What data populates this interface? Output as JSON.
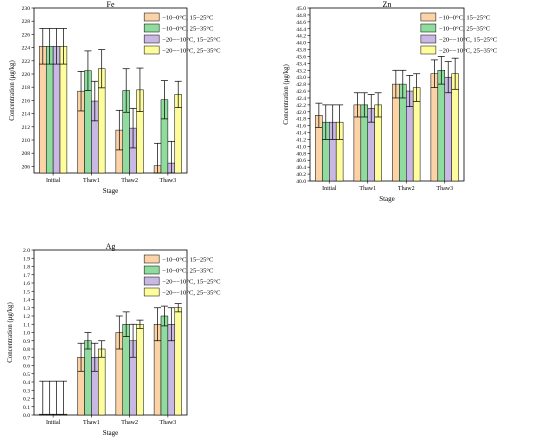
{
  "colors": {
    "series": [
      "#fcd3a6",
      "#8fdc9e",
      "#c9b8e4",
      "#fdfd9c"
    ]
  },
  "chart_data": [
    {
      "type": "bar",
      "title": "Fe",
      "xlabel": "Stage",
      "ylabel": "Concentration (μg/kg)",
      "categories": [
        "Initial",
        "Thaw1",
        "Thaw2",
        "Thaw3"
      ],
      "ylim": [
        205,
        230
      ],
      "yticks": [
        206,
        208,
        210,
        212,
        214,
        216,
        218,
        220,
        222,
        224,
        226,
        228,
        230
      ],
      "legend_position": "top-right",
      "series": [
        {
          "name": "−10~0°C, 15~25°C",
          "values": [
            224.2,
            217.4,
            211.5,
            206.1
          ],
          "errors": [
            2.7,
            3.0,
            3.0,
            3.4
          ]
        },
        {
          "name": "−10~0°C, 25~35°C",
          "values": [
            224.2,
            220.5,
            217.5,
            216.1
          ],
          "errors": [
            2.7,
            3.0,
            3.3,
            2.9
          ]
        },
        {
          "name": "−20~−10°C, 15~25°C",
          "values": [
            224.2,
            215.9,
            211.8,
            206.5
          ],
          "errors": [
            2.7,
            3.0,
            3.0,
            3.3
          ]
        },
        {
          "name": "−20~−10°C, 25~35°C",
          "values": [
            224.2,
            220.8,
            217.6,
            216.9
          ],
          "errors": [
            2.7,
            2.9,
            3.3,
            2.0
          ]
        }
      ]
    },
    {
      "type": "bar",
      "title": "Zn",
      "xlabel": "Stage",
      "ylabel": "Concentration (μg/kg)",
      "categories": [
        "Initial",
        "Thaw1",
        "Thaw2",
        "Thaw3"
      ],
      "ylim": [
        40.0,
        45.0
      ],
      "yticks": [
        40.0,
        40.2,
        40.4,
        40.6,
        40.8,
        41.0,
        41.2,
        41.4,
        41.6,
        41.8,
        42.0,
        42.2,
        42.4,
        42.6,
        42.8,
        43.0,
        43.2,
        43.4,
        43.6,
        43.8,
        44.0,
        44.2,
        44.4,
        44.6,
        44.8,
        45.0
      ],
      "legend_position": "top-right",
      "series": [
        {
          "name": "−10~0°C, 15~25°C",
          "values": [
            41.9,
            42.2,
            42.8,
            43.1
          ],
          "errors": [
            0.35,
            0.35,
            0.4,
            0.4
          ]
        },
        {
          "name": "−10~0°C, 25~35°C",
          "values": [
            41.7,
            42.2,
            42.8,
            43.2
          ],
          "errors": [
            0.5,
            0.35,
            0.4,
            0.4
          ]
        },
        {
          "name": "−20~−10°C, 15~25°C",
          "values": [
            41.7,
            42.1,
            42.6,
            43.0
          ],
          "errors": [
            0.5,
            0.4,
            0.45,
            0.45
          ]
        },
        {
          "name": "−20~−10°C, 25~35°C",
          "values": [
            41.7,
            42.2,
            42.7,
            43.1
          ],
          "errors": [
            0.5,
            0.35,
            0.4,
            0.45
          ]
        }
      ]
    },
    {
      "type": "bar",
      "title": "Ag",
      "xlabel": "Stage",
      "ylabel": "Concentration (μg/kg)",
      "categories": [
        "Initial",
        "Thaw1",
        "Thaw2",
        "Thaw3"
      ],
      "ylim": [
        0.0,
        2.0
      ],
      "yticks": [
        0.0,
        0.1,
        0.2,
        0.3,
        0.4,
        0.5,
        0.6,
        0.7,
        0.8,
        0.9,
        1.0,
        1.1,
        1.2,
        1.3,
        1.4,
        1.5,
        1.6,
        1.7,
        1.8,
        1.9,
        2.0
      ],
      "legend_position": "top-right",
      "series": [
        {
          "name": "−10~0°C, 15~25°C",
          "values": [
            0.01,
            0.7,
            1.0,
            1.1
          ],
          "errors": [
            0.4,
            0.17,
            0.2,
            0.2
          ]
        },
        {
          "name": "−10~0°C, 25~35°C",
          "values": [
            0.01,
            0.9,
            1.1,
            1.2
          ],
          "errors": [
            0.4,
            0.1,
            0.15,
            0.12
          ]
        },
        {
          "name": "−20~−10°C, 15~25°C",
          "values": [
            0.01,
            0.7,
            0.9,
            1.1
          ],
          "errors": [
            0.4,
            0.17,
            0.2,
            0.2
          ]
        },
        {
          "name": "−20~−10°C, 25~35°C",
          "values": [
            0.01,
            0.8,
            1.1,
            1.3
          ],
          "errors": [
            0.4,
            0.1,
            0.05,
            0.05
          ]
        }
      ]
    }
  ]
}
